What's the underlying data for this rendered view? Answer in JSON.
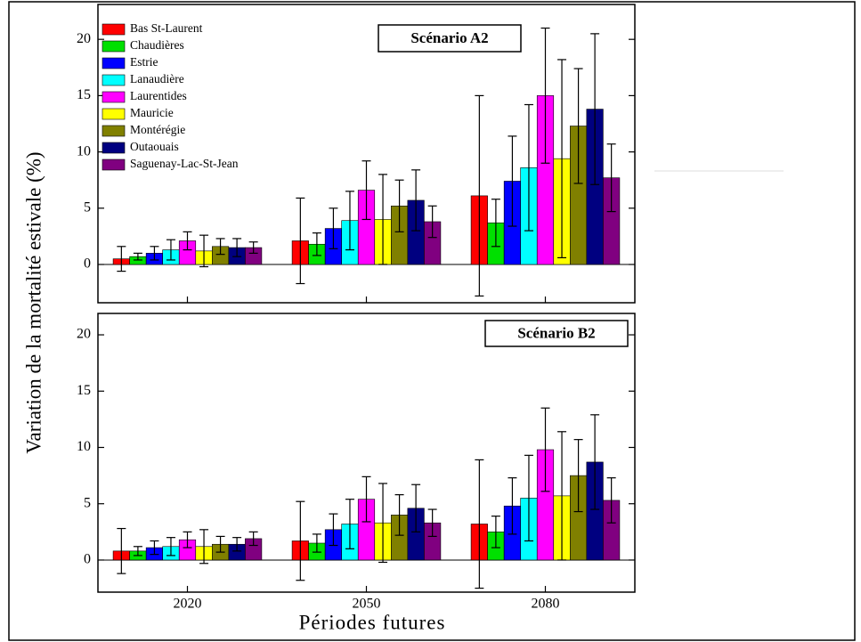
{
  "axis_labels": {
    "y": "Variation de la mortalité estivale (%)",
    "x": "Périodes futures"
  },
  "chart_data": [
    {
      "type": "bar",
      "title": "Scénario A2",
      "legend": "upper left",
      "ylim": [
        -3.4,
        23.1
      ],
      "yticks": [
        0,
        5,
        10,
        15,
        20
      ],
      "series": [
        {
          "name": "Bas St-Laurent",
          "color": "#ff0000",
          "values": [
            0.5,
            2.1,
            6.1
          ],
          "errors": [
            1.1,
            3.8,
            8.9
          ]
        },
        {
          "name": "Chaudières",
          "color": "#00e000",
          "values": [
            0.7,
            1.8,
            3.7
          ],
          "errors": [
            0.3,
            1.0,
            2.1
          ]
        },
        {
          "name": "Estrie",
          "color": "#0000ff",
          "values": [
            1.0,
            3.2,
            7.4
          ],
          "errors": [
            0.6,
            1.8,
            4.0
          ]
        },
        {
          "name": "Lanaudière",
          "color": "#00ffff",
          "values": [
            1.3,
            3.9,
            8.6
          ],
          "errors": [
            0.9,
            2.6,
            5.6
          ]
        },
        {
          "name": "Laurentides",
          "color": "#ff00ff",
          "values": [
            2.1,
            6.6,
            15.0
          ],
          "errors": [
            0.8,
            2.6,
            6.0
          ]
        },
        {
          "name": "Mauricie",
          "color": "#ffff00",
          "values": [
            1.2,
            4.0,
            9.4
          ],
          "errors": [
            1.4,
            4.0,
            8.8
          ]
        },
        {
          "name": "Montérégie",
          "color": "#808000",
          "values": [
            1.6,
            5.2,
            12.3
          ],
          "errors": [
            0.7,
            2.3,
            5.1
          ]
        },
        {
          "name": "Outaouais",
          "color": "#000080",
          "values": [
            1.5,
            5.7,
            13.8
          ],
          "errors": [
            0.8,
            2.7,
            6.7
          ]
        },
        {
          "name": "Saguenay-Lac-St-Jean",
          "color": "#800080",
          "values": [
            1.5,
            3.8,
            7.7
          ],
          "errors": [
            0.5,
            1.4,
            3.0
          ]
        }
      ]
    },
    {
      "type": "bar",
      "title": "Scénario B2",
      "categories": [
        "2020",
        "2050",
        "2080"
      ],
      "ylim": [
        -2.85,
        21.9
      ],
      "yticks": [
        0,
        5,
        10,
        15,
        20
      ],
      "series": [
        {
          "color": "#ff0000",
          "values": [
            0.8,
            1.7,
            3.2
          ],
          "errors": [
            2.0,
            3.5,
            5.7
          ]
        },
        {
          "color": "#00e000",
          "values": [
            0.8,
            1.5,
            2.5
          ],
          "errors": [
            0.4,
            0.8,
            1.4
          ]
        },
        {
          "color": "#0000ff",
          "values": [
            1.1,
            2.7,
            4.8
          ],
          "errors": [
            0.6,
            1.4,
            2.5
          ]
        },
        {
          "color": "#00ffff",
          "values": [
            1.2,
            3.2,
            5.5
          ],
          "errors": [
            0.8,
            2.2,
            3.8
          ]
        },
        {
          "color": "#ff00ff",
          "values": [
            1.8,
            5.4,
            9.8
          ],
          "errors": [
            0.7,
            2.0,
            3.7
          ]
        },
        {
          "color": "#ffff00",
          "values": [
            1.2,
            3.3,
            5.7
          ],
          "errors": [
            1.5,
            3.5,
            5.7
          ]
        },
        {
          "color": "#808000",
          "values": [
            1.4,
            4.0,
            7.5
          ],
          "errors": [
            0.7,
            1.8,
            3.2
          ]
        },
        {
          "color": "#000080",
          "values": [
            1.4,
            4.6,
            8.7
          ],
          "errors": [
            0.6,
            2.1,
            4.2
          ]
        },
        {
          "color": "#800080",
          "values": [
            1.9,
            3.3,
            5.3
          ],
          "errors": [
            0.6,
            1.2,
            2.0
          ]
        }
      ]
    }
  ]
}
